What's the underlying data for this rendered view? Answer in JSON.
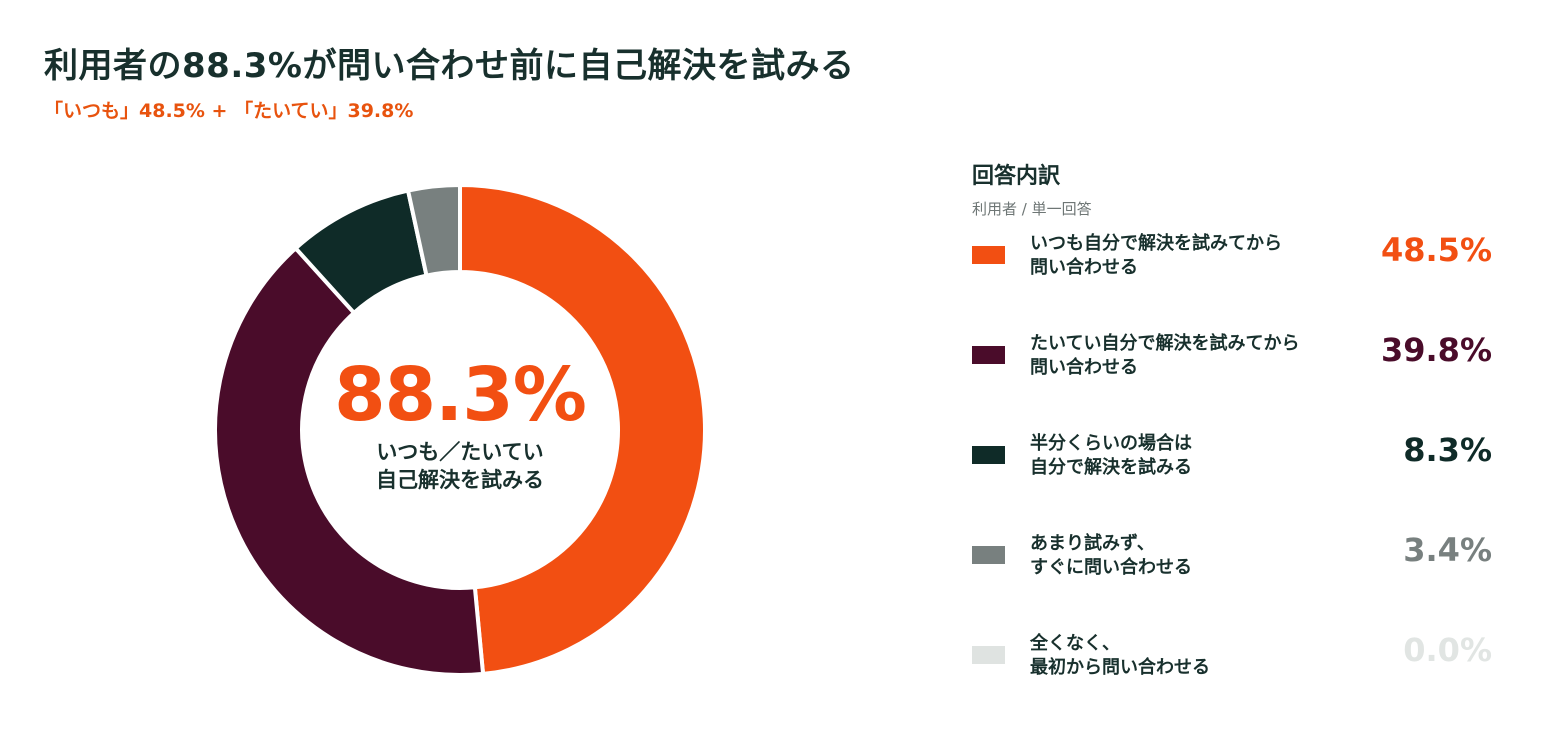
{
  "title": "利用者の88.3%が問い合わせ前に自己解決を試みる",
  "subtitle": "「いつも」48.5% + 「たいてい」39.8%",
  "center": {
    "value": "88.3%",
    "line1": "いつも／たいてい",
    "line2": "自己解決を試みる"
  },
  "legend": {
    "title": "回答内訳",
    "note": "利用者 / 単一回答"
  },
  "chart_data": {
    "type": "pie",
    "title": "利用者の88.3%が問い合わせ前に自己解決を試みる",
    "subtitle": "「いつも」48.5% + 「たいてい」39.8%",
    "unit": "%",
    "slices": [
      {
        "label_lines": [
          "いつも自分で解決を試みてから",
          "問い合わせる"
        ],
        "value": 48.5,
        "display": "48.5%",
        "color": "#f24f12",
        "text_color": "#f24f12"
      },
      {
        "label_lines": [
          "たいてい自分で解決を試みてから",
          "問い合わせる"
        ],
        "value": 39.8,
        "display": "39.8%",
        "color": "#4a0c2a",
        "text_color": "#4a0c2a"
      },
      {
        "label_lines": [
          "半分くらいの場合は",
          "自分で解決を試みる"
        ],
        "value": 8.3,
        "display": "8.3%",
        "color": "#0f2b28",
        "text_color": "#0f2b28"
      },
      {
        "label_lines": [
          "あまり試みず、",
          "すぐに問い合わせる"
        ],
        "value": 3.4,
        "display": "3.4%",
        "color": "#78807f",
        "text_color": "#78807f"
      },
      {
        "label_lines": [
          "全くなく、",
          "最初から問い合わせる"
        ],
        "value": 0.0,
        "display": "0.0%",
        "color": "#dfe3e1",
        "text_color": "#e1e5e3"
      }
    ]
  }
}
